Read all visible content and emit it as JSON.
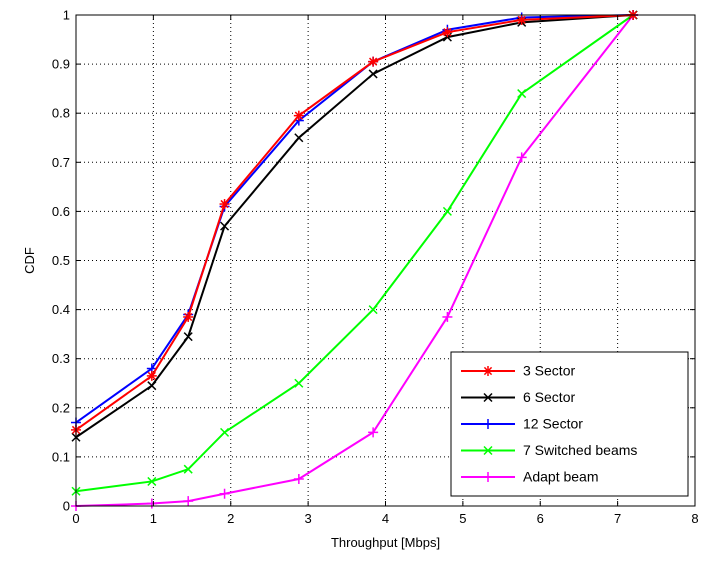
{
  "chart_data": {
    "type": "line",
    "xlabel": "Throughput [Mbps]",
    "ylabel": "CDF",
    "xlim": [
      0,
      8
    ],
    "ylim": [
      0,
      1
    ],
    "xticks": [
      "0",
      "1",
      "2",
      "3",
      "4",
      "5",
      "6",
      "7",
      "8"
    ],
    "yticks": [
      "0",
      "0.1",
      "0.2",
      "0.3",
      "0.4",
      "0.5",
      "0.6",
      "0.7",
      "0.8",
      "0.9",
      "1"
    ],
    "grid": true,
    "legend_position": "bottom-right",
    "series": [
      {
        "name": "3 Sector",
        "color": "#ff0000",
        "marker": "star",
        "x": [
          0,
          0.98,
          1.45,
          1.92,
          2.88,
          3.84,
          4.8,
          5.76,
          7.2
        ],
        "y": [
          0.155,
          0.265,
          0.385,
          0.615,
          0.795,
          0.905,
          0.965,
          0.99,
          1.0
        ]
      },
      {
        "name": "6 Sector",
        "color": "#000000",
        "marker": "x",
        "x": [
          0,
          0.98,
          1.45,
          1.92,
          2.88,
          3.84,
          4.8,
          5.76,
          7.2
        ],
        "y": [
          0.14,
          0.245,
          0.345,
          0.57,
          0.75,
          0.88,
          0.955,
          0.985,
          1.0
        ]
      },
      {
        "name": "12 Sector",
        "color": "#0000ff",
        "marker": "plus",
        "x": [
          0,
          0.98,
          1.45,
          1.92,
          2.88,
          3.84,
          4.8,
          5.76,
          7.2
        ],
        "y": [
          0.17,
          0.28,
          0.39,
          0.61,
          0.785,
          0.905,
          0.97,
          0.995,
          1.0
        ]
      },
      {
        "name": "7 Switched beams",
        "color": "#00ff00",
        "marker": "x",
        "x": [
          0,
          0.98,
          1.45,
          1.92,
          2.88,
          3.84,
          4.8,
          5.76,
          7.2
        ],
        "y": [
          0.03,
          0.05,
          0.075,
          0.15,
          0.25,
          0.4,
          0.6,
          0.84,
          1.0
        ]
      },
      {
        "name": "Adapt beam",
        "color": "#ff00ff",
        "marker": "plus",
        "x": [
          0,
          0.98,
          1.45,
          1.92,
          2.88,
          3.84,
          4.8,
          5.76,
          7.2
        ],
        "y": [
          0.0,
          0.005,
          0.01,
          0.025,
          0.055,
          0.15,
          0.385,
          0.71,
          1.0
        ]
      }
    ]
  }
}
